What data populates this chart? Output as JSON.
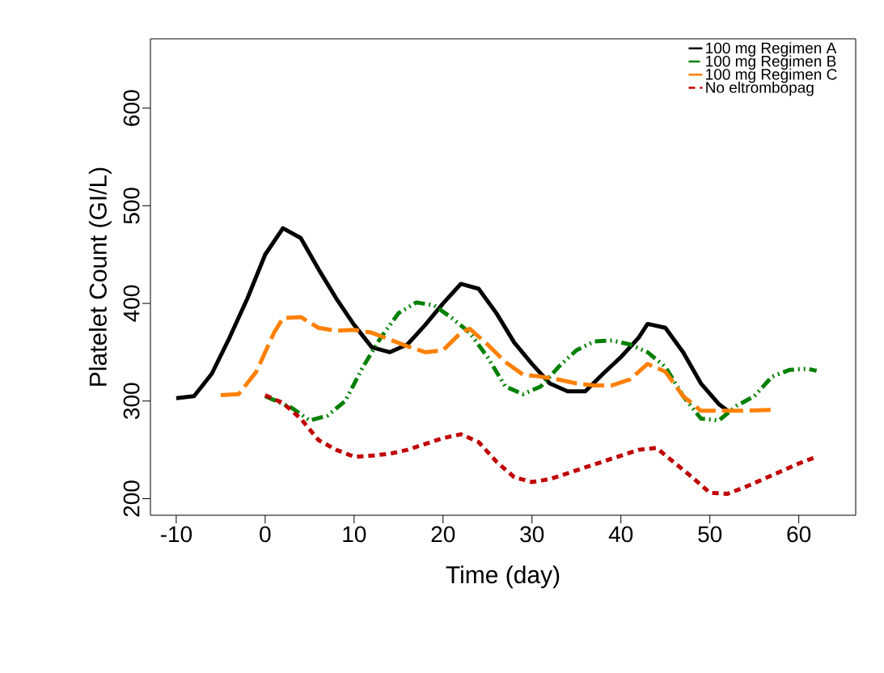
{
  "chart_data": {
    "type": "line",
    "xlabel": "Time (day)",
    "ylabel": "Platelet Count (GI/L)",
    "xlim": [
      -12.9,
      66.4
    ],
    "ylim": [
      183,
      671
    ],
    "xticks": [
      -10,
      0,
      10,
      20,
      30,
      40,
      50,
      60
    ],
    "yticks": [
      200,
      300,
      400,
      500,
      600
    ],
    "grid": false,
    "legend": "top right",
    "series": [
      {
        "name": "100 mg Regimen A",
        "color": "#000000",
        "line_style": "solid",
        "x": [
          -10,
          -8,
          -6,
          -4,
          -2,
          0,
          2,
          4,
          6,
          8,
          10,
          12,
          14,
          16,
          18,
          20,
          22,
          24,
          26,
          28,
          30,
          32,
          34,
          36,
          38,
          40,
          42,
          43,
          45,
          47,
          49,
          51,
          52
        ],
        "values": [
          303,
          305,
          328,
          365,
          405,
          450,
          477,
          467,
          435,
          405,
          378,
          355,
          350,
          358,
          378,
          400,
          420,
          415,
          390,
          360,
          338,
          318,
          310,
          310,
          328,
          345,
          365,
          379,
          375,
          350,
          318,
          297,
          290
        ]
      },
      {
        "name": "100 mg Regimen B",
        "color": "#008000",
        "line_style": "dashdotdotted",
        "x": [
          0,
          3,
          5,
          7,
          9,
          11,
          13,
          15,
          17,
          19,
          21,
          23,
          25,
          27,
          29,
          31,
          33,
          35,
          37,
          39,
          41,
          43,
          45,
          47,
          49,
          51,
          53,
          55,
          57,
          59,
          61,
          62
        ],
        "values": [
          305,
          293,
          280,
          285,
          300,
          335,
          365,
          390,
          401,
          398,
          385,
          370,
          345,
          315,
          307,
          315,
          335,
          352,
          361,
          362,
          358,
          350,
          335,
          305,
          282,
          280,
          295,
          305,
          325,
          332,
          333,
          331
        ]
      },
      {
        "name": "100 mg Regimen C",
        "color": "#ff8000",
        "line_style": "longdashed",
        "x": [
          -5,
          -3,
          -1,
          1,
          2,
          4,
          6,
          8,
          10,
          12,
          14,
          16,
          18,
          20,
          22,
          23,
          25,
          27,
          29,
          31,
          33,
          35,
          37,
          39,
          41,
          43,
          45,
          47,
          49,
          51,
          53,
          57
        ],
        "values": [
          306,
          307,
          330,
          370,
          385,
          386,
          375,
          372,
          373,
          370,
          363,
          356,
          350,
          352,
          370,
          374,
          358,
          340,
          327,
          325,
          322,
          318,
          316,
          316,
          322,
          338,
          330,
          305,
          290,
          290,
          290,
          291
        ]
      },
      {
        "name": "No eltrombopag",
        "color": "#c00000",
        "line_style": "dashed",
        "x": [
          0,
          2,
          4,
          6,
          8,
          10,
          12,
          14,
          16,
          18,
          20,
          22,
          24,
          26,
          28,
          30,
          32,
          34,
          36,
          38,
          40,
          42,
          44,
          46,
          48,
          50,
          52,
          54,
          56,
          58,
          60,
          62
        ],
        "values": [
          306,
          298,
          282,
          260,
          250,
          243,
          244,
          246,
          250,
          256,
          262,
          266,
          258,
          238,
          222,
          217,
          220,
          226,
          232,
          238,
          244,
          250,
          252,
          237,
          222,
          206,
          205,
          212,
          220,
          228,
          236,
          243
        ]
      }
    ]
  }
}
